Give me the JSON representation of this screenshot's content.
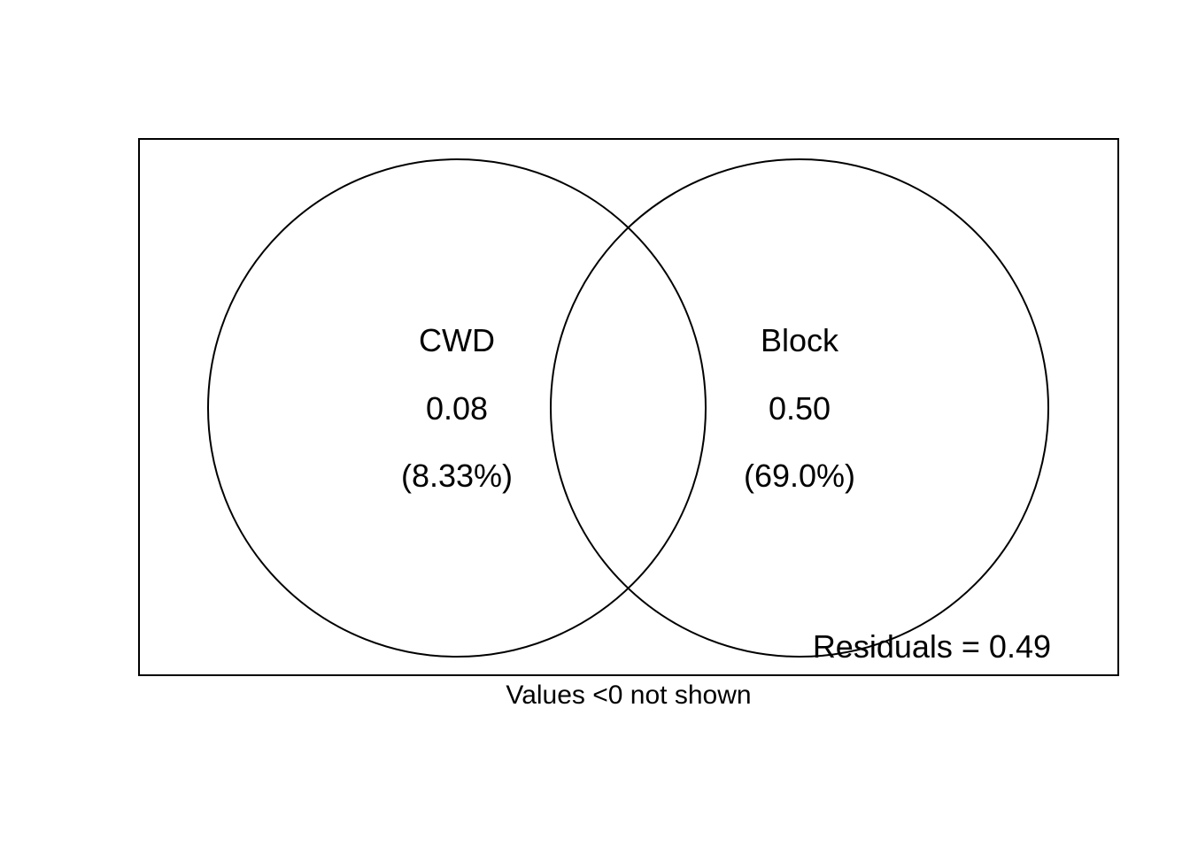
{
  "diagram": {
    "type": "venn",
    "sets": [
      {
        "label": "CWD",
        "value": "0.08",
        "percent": "(8.33%)"
      },
      {
        "label": "Block",
        "value": "0.50",
        "percent": "(69.0%)"
      }
    ],
    "residuals": "Residuals = 0.49",
    "note": "Values <0 not shown",
    "colors": {
      "stroke": "#000000",
      "background": "#ffffff"
    }
  }
}
